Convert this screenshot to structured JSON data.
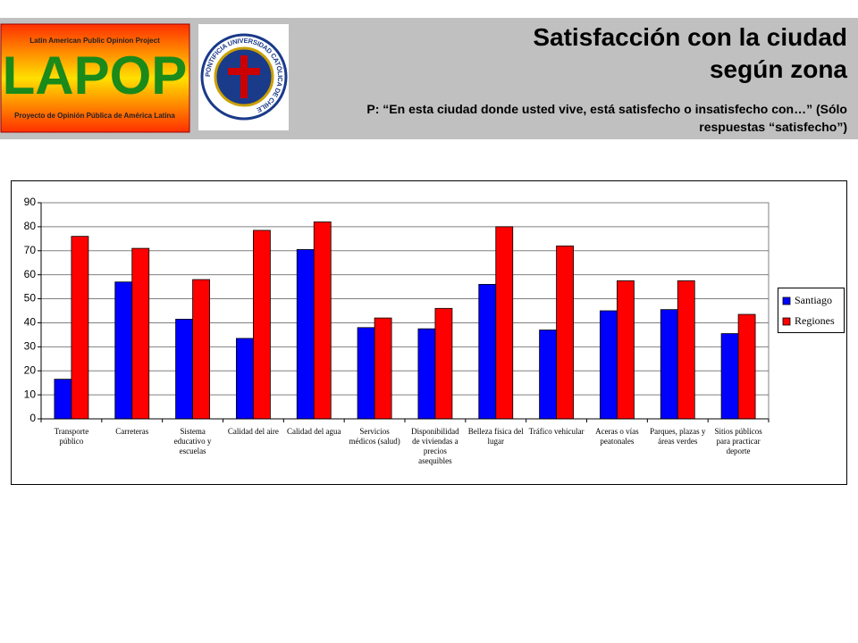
{
  "header": {
    "title": "Satisfacción con la ciudad según zona",
    "subtitle": "P: “En esta ciudad donde usted vive, está satisfecho o insatisfecho con…” (Sólo respuestas “satisfecho”)"
  },
  "logo": {
    "top": "Latin American Public Opinion Project",
    "name": "LAPOP",
    "bottom": "Proyecto de Opinión Pública de América Latina"
  },
  "seal": {
    "text": "PONTIFICIA UNIVERSIDAD CATÓLICA DE CHILE"
  },
  "chart_data": {
    "type": "bar",
    "categories": [
      "Transporte público",
      "Carreteras",
      "Sistema educativo y escuelas",
      "Calidad del aire",
      "Calidad del agua",
      "Servicios médicos (salud)",
      "Disponibilidad de viviendas a precios asequibles",
      "Belleza física del lugar",
      "Tráfico vehicular",
      "Aceras o vías peatonales",
      "Parques, plazas y áreas verdes",
      "Sitios públicos para practicar deporte"
    ],
    "series": [
      {
        "name": "Santiago",
        "color": "#0000ff",
        "values": [
          16.5,
          57,
          41.5,
          33.5,
          70.5,
          38,
          37.5,
          56,
          37,
          45,
          45.5,
          35.5
        ]
      },
      {
        "name": "Regiones",
        "color": "#ff0000",
        "values": [
          76,
          71,
          58,
          78.5,
          82,
          42,
          46,
          80,
          72,
          57.5,
          57.5,
          43.5
        ]
      }
    ],
    "ylim": [
      0,
      90
    ],
    "yticks": [
      0,
      10,
      20,
      30,
      40,
      50,
      60,
      70,
      80,
      90
    ],
    "grid": true,
    "legend": "right"
  }
}
